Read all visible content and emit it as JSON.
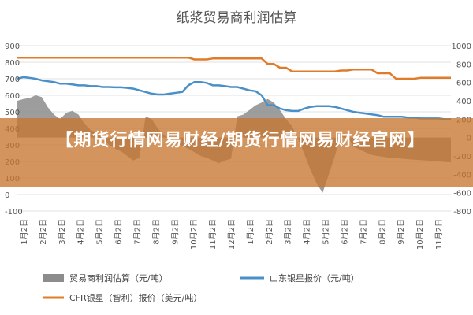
{
  "chart_data": {
    "type": "line",
    "title": "纸浆贸易商利润估算",
    "y_left_ticks": [
      "900",
      "800",
      "700",
      "600",
      "500",
      "400",
      "300",
      "200",
      "100",
      "0",
      "-100"
    ],
    "y_right_ticks": [
      "1000",
      "800",
      "600",
      "400",
      "200",
      "0",
      "-200",
      "-400",
      "-600",
      "-800"
    ],
    "ylim_left": [
      -100,
      900
    ],
    "ylim_right": [
      -800,
      1000
    ],
    "grid": true,
    "legend_position": "bottom",
    "x_ticks": [
      "1月2日",
      "2月2日",
      "3月2日",
      "4月2日",
      "5月2日",
      "6月2日",
      "7月2日",
      "8月2日",
      "9月2日",
      "10月2日",
      "11月2日",
      "12月2日",
      "1月2日",
      "2月2日",
      "3月2日",
      "4月2日",
      "5月2日",
      "6月2日",
      "7月2日",
      "8月2日",
      "9月2日",
      "10月2日",
      "11月2日"
    ],
    "series": [
      {
        "name": "贸易商利润估算（元/吨）",
        "kind": "area",
        "axis": "right",
        "color": "#8c8c8c",
        "values": [
          400,
          420,
          430,
          460,
          440,
          330,
          250,
          200,
          270,
          290,
          250,
          150,
          80,
          60,
          0,
          -80,
          -120,
          -150,
          -200,
          -250,
          -220,
          230,
          200,
          100,
          30,
          -30,
          -60,
          -90,
          -120,
          -160,
          -200,
          -220,
          -250,
          -280,
          -250,
          -230,
          230,
          250,
          300,
          350,
          380,
          420,
          380,
          300,
          200,
          120,
          -20,
          -180,
          -350,
          -500,
          -600,
          -400,
          -200,
          40,
          20,
          -100,
          -130,
          -160,
          -190,
          -200,
          -210,
          -220,
          -225,
          -230,
          -235,
          -240,
          -245,
          -250,
          -255,
          -260,
          -265,
          -270
        ]
      },
      {
        "name": "山东银星报价（元/吨）",
        "kind": "line",
        "axis": "left",
        "color": "#4a90c8",
        "values": [
          700,
          710,
          705,
          700,
          690,
          685,
          680,
          670,
          670,
          665,
          660,
          660,
          655,
          655,
          650,
          650,
          648,
          648,
          645,
          640,
          630,
          620,
          610,
          605,
          605,
          610,
          615,
          620,
          660,
          680,
          680,
          675,
          660,
          660,
          655,
          650,
          650,
          640,
          630,
          625,
          600,
          540,
          540,
          520,
          510,
          505,
          505,
          520,
          530,
          535,
          535,
          535,
          530,
          520,
          510,
          500,
          495,
          490,
          485,
          480,
          470,
          470,
          470,
          470,
          465,
          465,
          460,
          460,
          460,
          460,
          455,
          455
        ]
      },
      {
        "name": "CFR银星（智利）报价（美元/吨）",
        "kind": "line",
        "axis": "right",
        "color": "#e07b2a",
        "values": [
          870,
          870,
          870,
          870,
          870,
          870,
          870,
          870,
          870,
          870,
          870,
          870,
          870,
          870,
          870,
          870,
          870,
          870,
          870,
          870,
          870,
          870,
          870,
          870,
          870,
          870,
          870,
          870,
          870,
          850,
          850,
          850,
          860,
          860,
          860,
          860,
          860,
          860,
          860,
          860,
          860,
          800,
          800,
          760,
          760,
          720,
          720,
          720,
          720,
          720,
          720,
          720,
          720,
          730,
          730,
          740,
          740,
          740,
          740,
          700,
          700,
          700,
          640,
          640,
          640,
          640,
          650,
          650,
          650,
          650,
          650,
          650
        ]
      }
    ]
  },
  "legend": {
    "area_label": "贸易商利润估算（元/吨）",
    "line1_label": "山东银星报价（元/吨）",
    "line2_label": "CFR银星（智利）报价（美元/吨）"
  },
  "colors": {
    "area": "#8c8c8c",
    "line1": "#4a90c8",
    "line2": "#e07b2a",
    "banner": "#c67630"
  },
  "banner": {
    "text": "【期货行情网易财经/期货行情网易财经官网】"
  }
}
